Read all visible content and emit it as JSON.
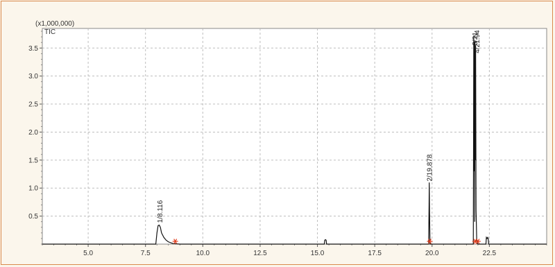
{
  "chart_data": {
    "type": "line",
    "multiplier_label": "(x1,000,000)",
    "trace_label": "TIC",
    "xlim": [
      3.0,
      25.0
    ],
    "ylim": [
      0,
      3.85
    ],
    "x_ticks": [
      5.0,
      7.5,
      10.0,
      12.5,
      15.0,
      17.5,
      20.0,
      22.5
    ],
    "x_tick_labels": [
      "5.0",
      "7.5",
      "10.0",
      "12.5",
      "15.0",
      "17.5",
      "20.0",
      "22.5"
    ],
    "y_ticks": [
      0.5,
      1.0,
      1.5,
      2.0,
      2.5,
      3.0,
      3.5
    ],
    "y_tick_labels": [
      "0.5",
      "1.0",
      "1.5",
      "2.0",
      "2.5",
      "3.0",
      "3.5"
    ],
    "grid": true,
    "series": [
      {
        "x": [
          3.0,
          7.95,
          8.0,
          8.05,
          8.1,
          8.15,
          8.2,
          8.3,
          8.4,
          8.5,
          8.7,
          9.0,
          15.3,
          15.32,
          15.35,
          15.38,
          15.4,
          19.85,
          19.87,
          19.878,
          19.89,
          19.91,
          21.8,
          21.82,
          21.84,
          21.85,
          21.86,
          21.87,
          21.88,
          21.9,
          21.92,
          21.95,
          22.0,
          22.35,
          22.37,
          22.4,
          22.43,
          22.45,
          22.47,
          22.5,
          25.0
        ],
        "y": [
          0.0,
          0.0,
          0.2,
          0.33,
          0.34,
          0.3,
          0.2,
          0.12,
          0.07,
          0.04,
          0.01,
          0.0,
          0.0,
          0.07,
          0.08,
          0.07,
          0.0,
          0.0,
          0.7,
          1.1,
          0.6,
          0.0,
          0.0,
          3.72,
          1.3,
          3.62,
          0.4,
          3.6,
          1.5,
          3.55,
          0.6,
          0.05,
          0.0,
          0.0,
          0.12,
          0.1,
          0.12,
          0.1,
          0.0,
          0.0,
          0.0
        ]
      }
    ],
    "peak_labels": [
      {
        "text": "1/8.116",
        "x": 8.116,
        "y": 0.38
      },
      {
        "text": "2/19.878",
        "x": 19.878,
        "y": 1.12
      }
    ],
    "cluster_labels": [
      "3/21.",
      "4/21.94"
    ],
    "cluster_label_x": 21.86,
    "cluster_label_y": 3.82,
    "marker_color": "#e03b1a",
    "markers": [
      8.8,
      19.9,
      21.88,
      22.0
    ]
  }
}
